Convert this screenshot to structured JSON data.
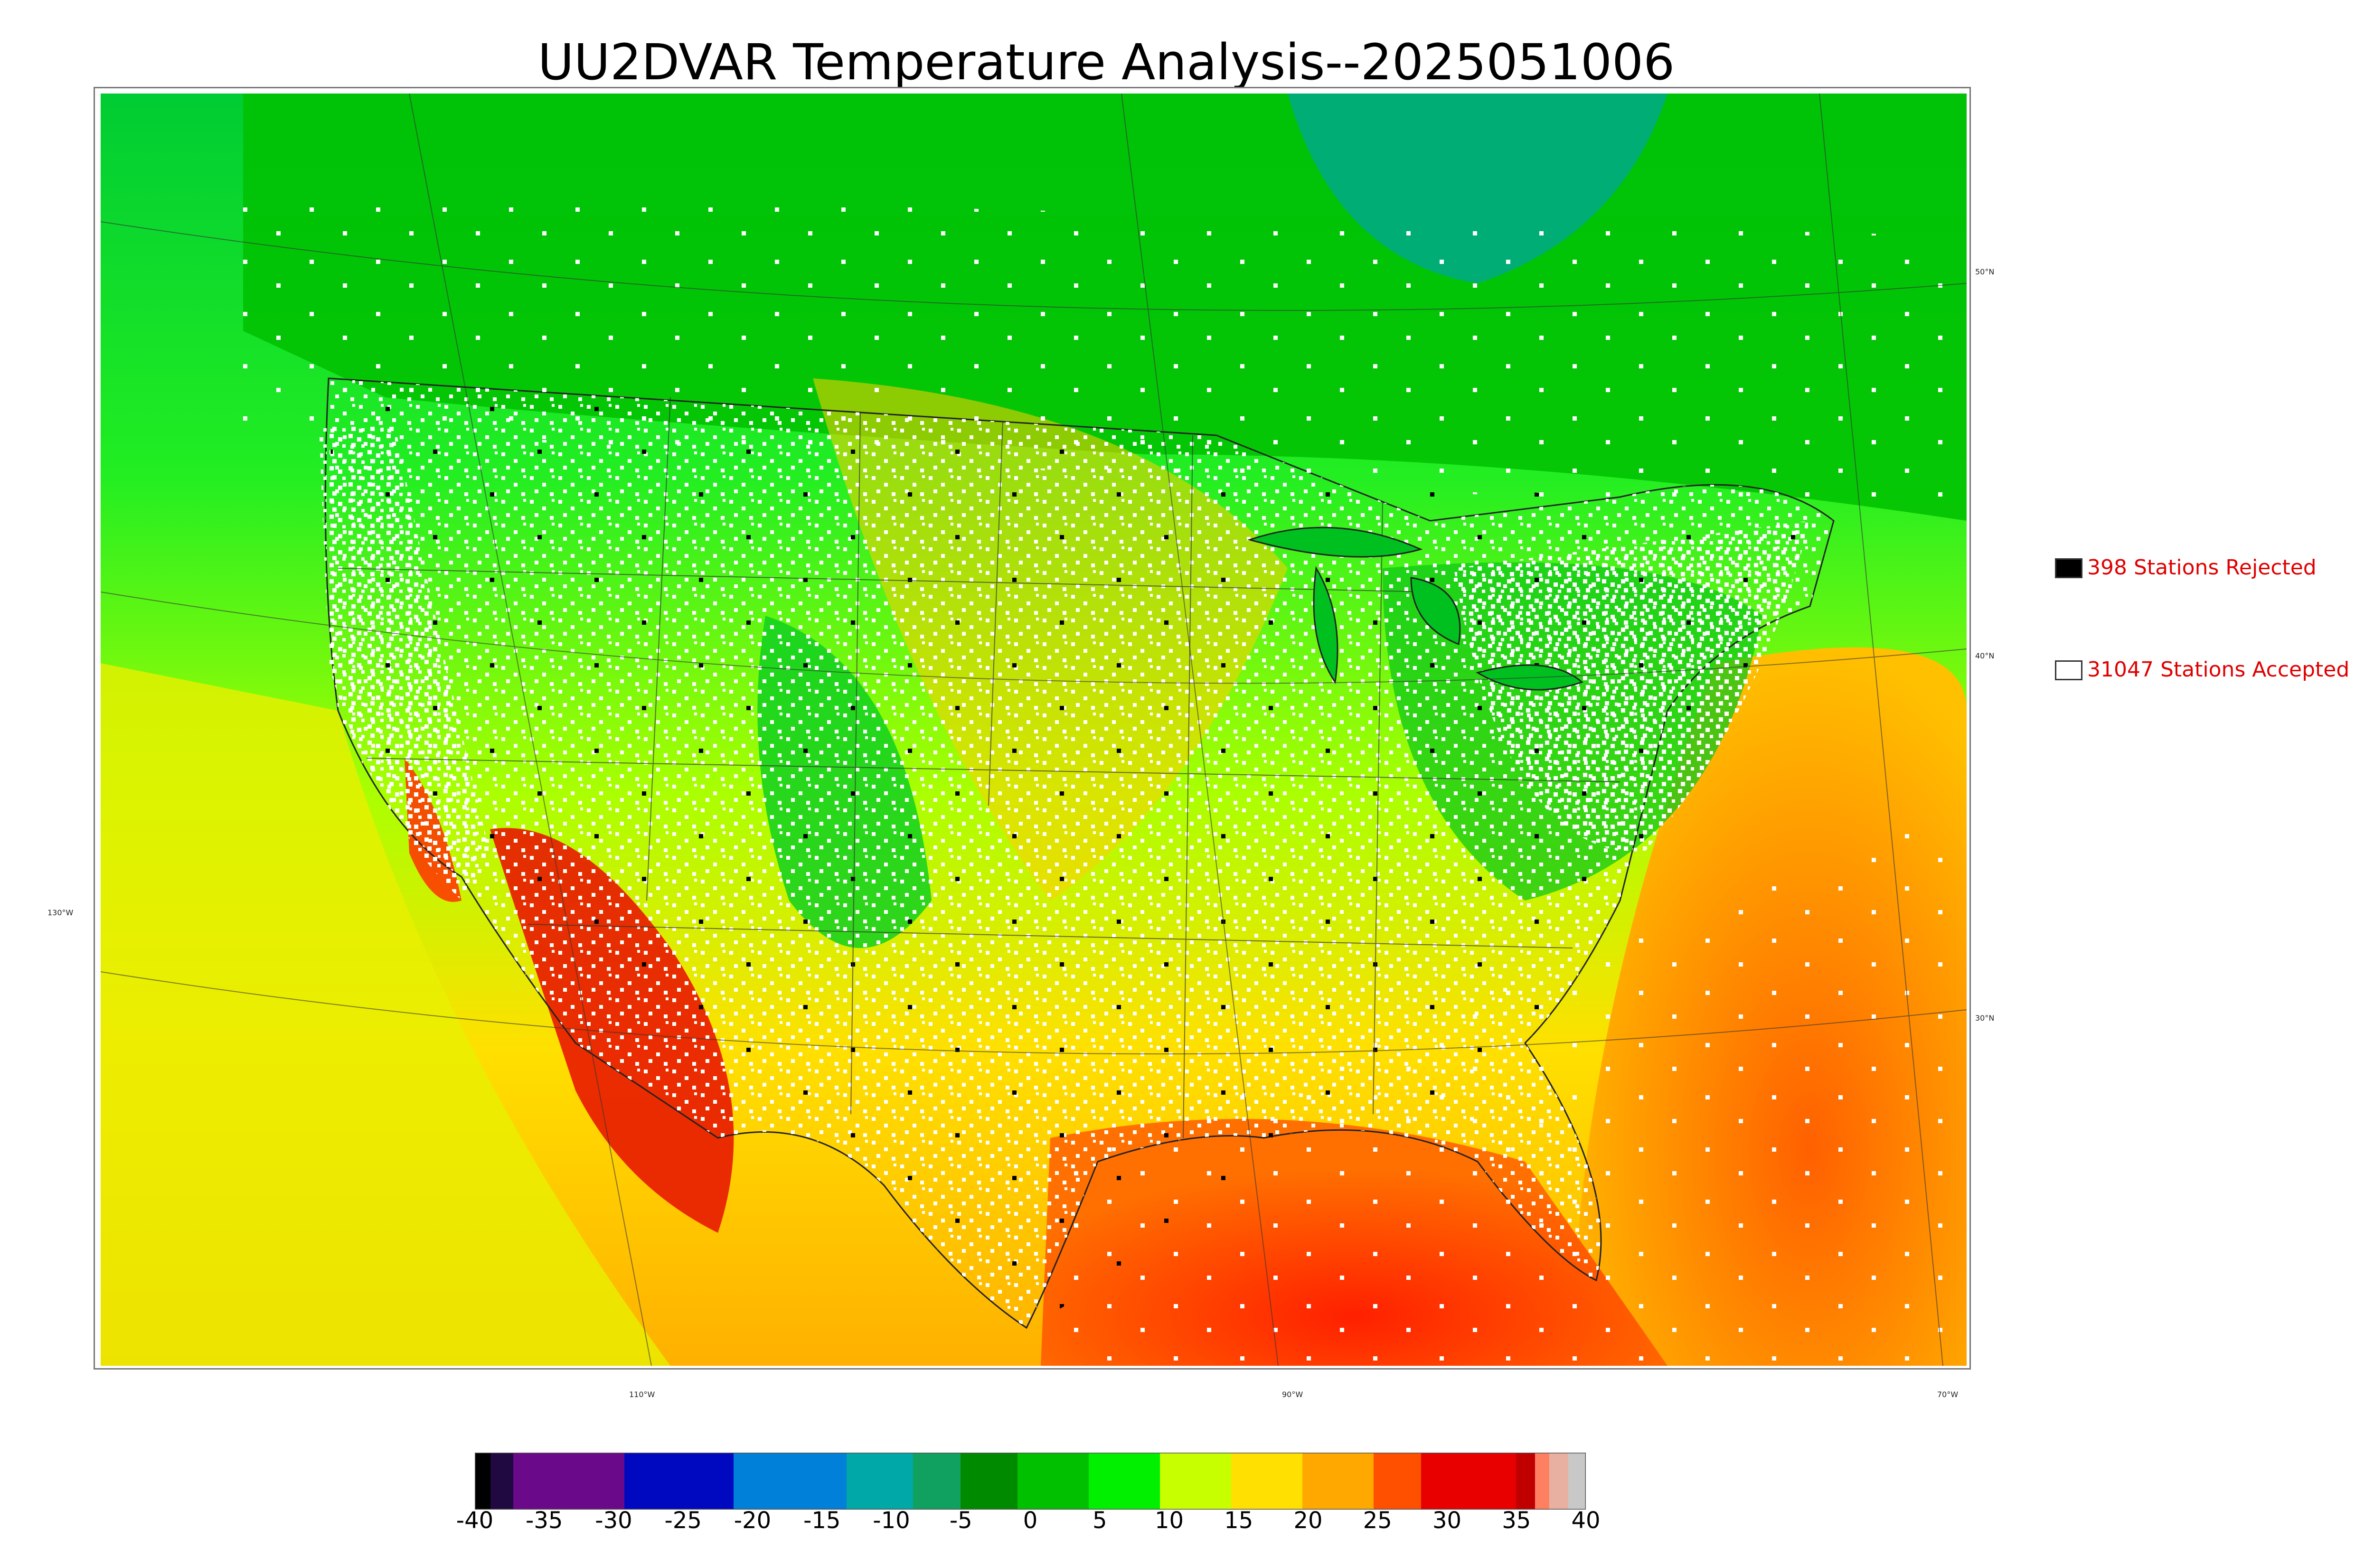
{
  "title": "UU2DVAR Temperature Analysis--2025051006",
  "legend": {
    "rejected": {
      "label": "398 Stations Rejected",
      "swatch_color": "#000000"
    },
    "accepted": {
      "label": "31047 Stations Accepted",
      "swatch_color": "#ffffff"
    }
  },
  "coordinate_labels": {
    "lat_50": "50°N",
    "lat_40": "40°N",
    "lat_30": "30°N",
    "lon_130": "130°W",
    "lon_110": "110°W",
    "lon_90": "90°W",
    "lon_70": "70°W"
  },
  "colorbar": {
    "ticks": [
      "-40",
      "-35",
      "-30",
      "-25",
      "-20",
      "-15",
      "-10",
      "-5",
      "0",
      "5",
      "10",
      "15",
      "20",
      "25",
      "30",
      "35",
      "40"
    ],
    "range": [
      -40,
      40
    ],
    "colors": {
      "very_cold": "#120020",
      "purple": "#6a0a8a",
      "deep_blue": "#0010c8",
      "blue": "#0088dd",
      "teal": "#00aaa0",
      "dark_green": "#009000",
      "green": "#00ff00",
      "yellow_green": "#d8ff00",
      "yellow": "#ffd800",
      "orange": "#ffa000",
      "red": "#ff1000",
      "dark_red": "#d80000",
      "salmon": "#ff9070",
      "gray": "#c8c8c8"
    }
  }
}
